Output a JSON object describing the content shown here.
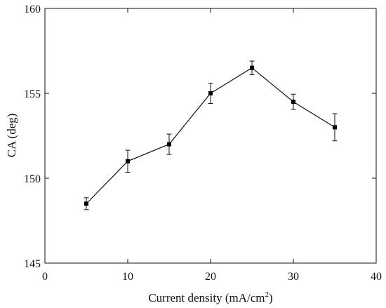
{
  "chart_data": {
    "type": "line",
    "xlabel_prefix": "Current density (mA/cm",
    "xlabel_sup": "2",
    "xlabel_suffix": ")",
    "ylabel": "CA (deg)",
    "xlim": [
      0,
      40
    ],
    "ylim": [
      145,
      160
    ],
    "xticks": [
      0,
      10,
      20,
      30,
      40
    ],
    "yticks": [
      145,
      150,
      155,
      160
    ],
    "grid": false,
    "series": [
      {
        "x": [
          5,
          10,
          15,
          20,
          25,
          30,
          35
        ],
        "y": [
          148.5,
          151.0,
          152.0,
          155.0,
          156.5,
          154.5,
          153.0
        ],
        "error": [
          0.35,
          0.65,
          0.6,
          0.6,
          0.4,
          0.45,
          0.8
        ],
        "marker": "square",
        "color": "#000000"
      }
    ]
  }
}
